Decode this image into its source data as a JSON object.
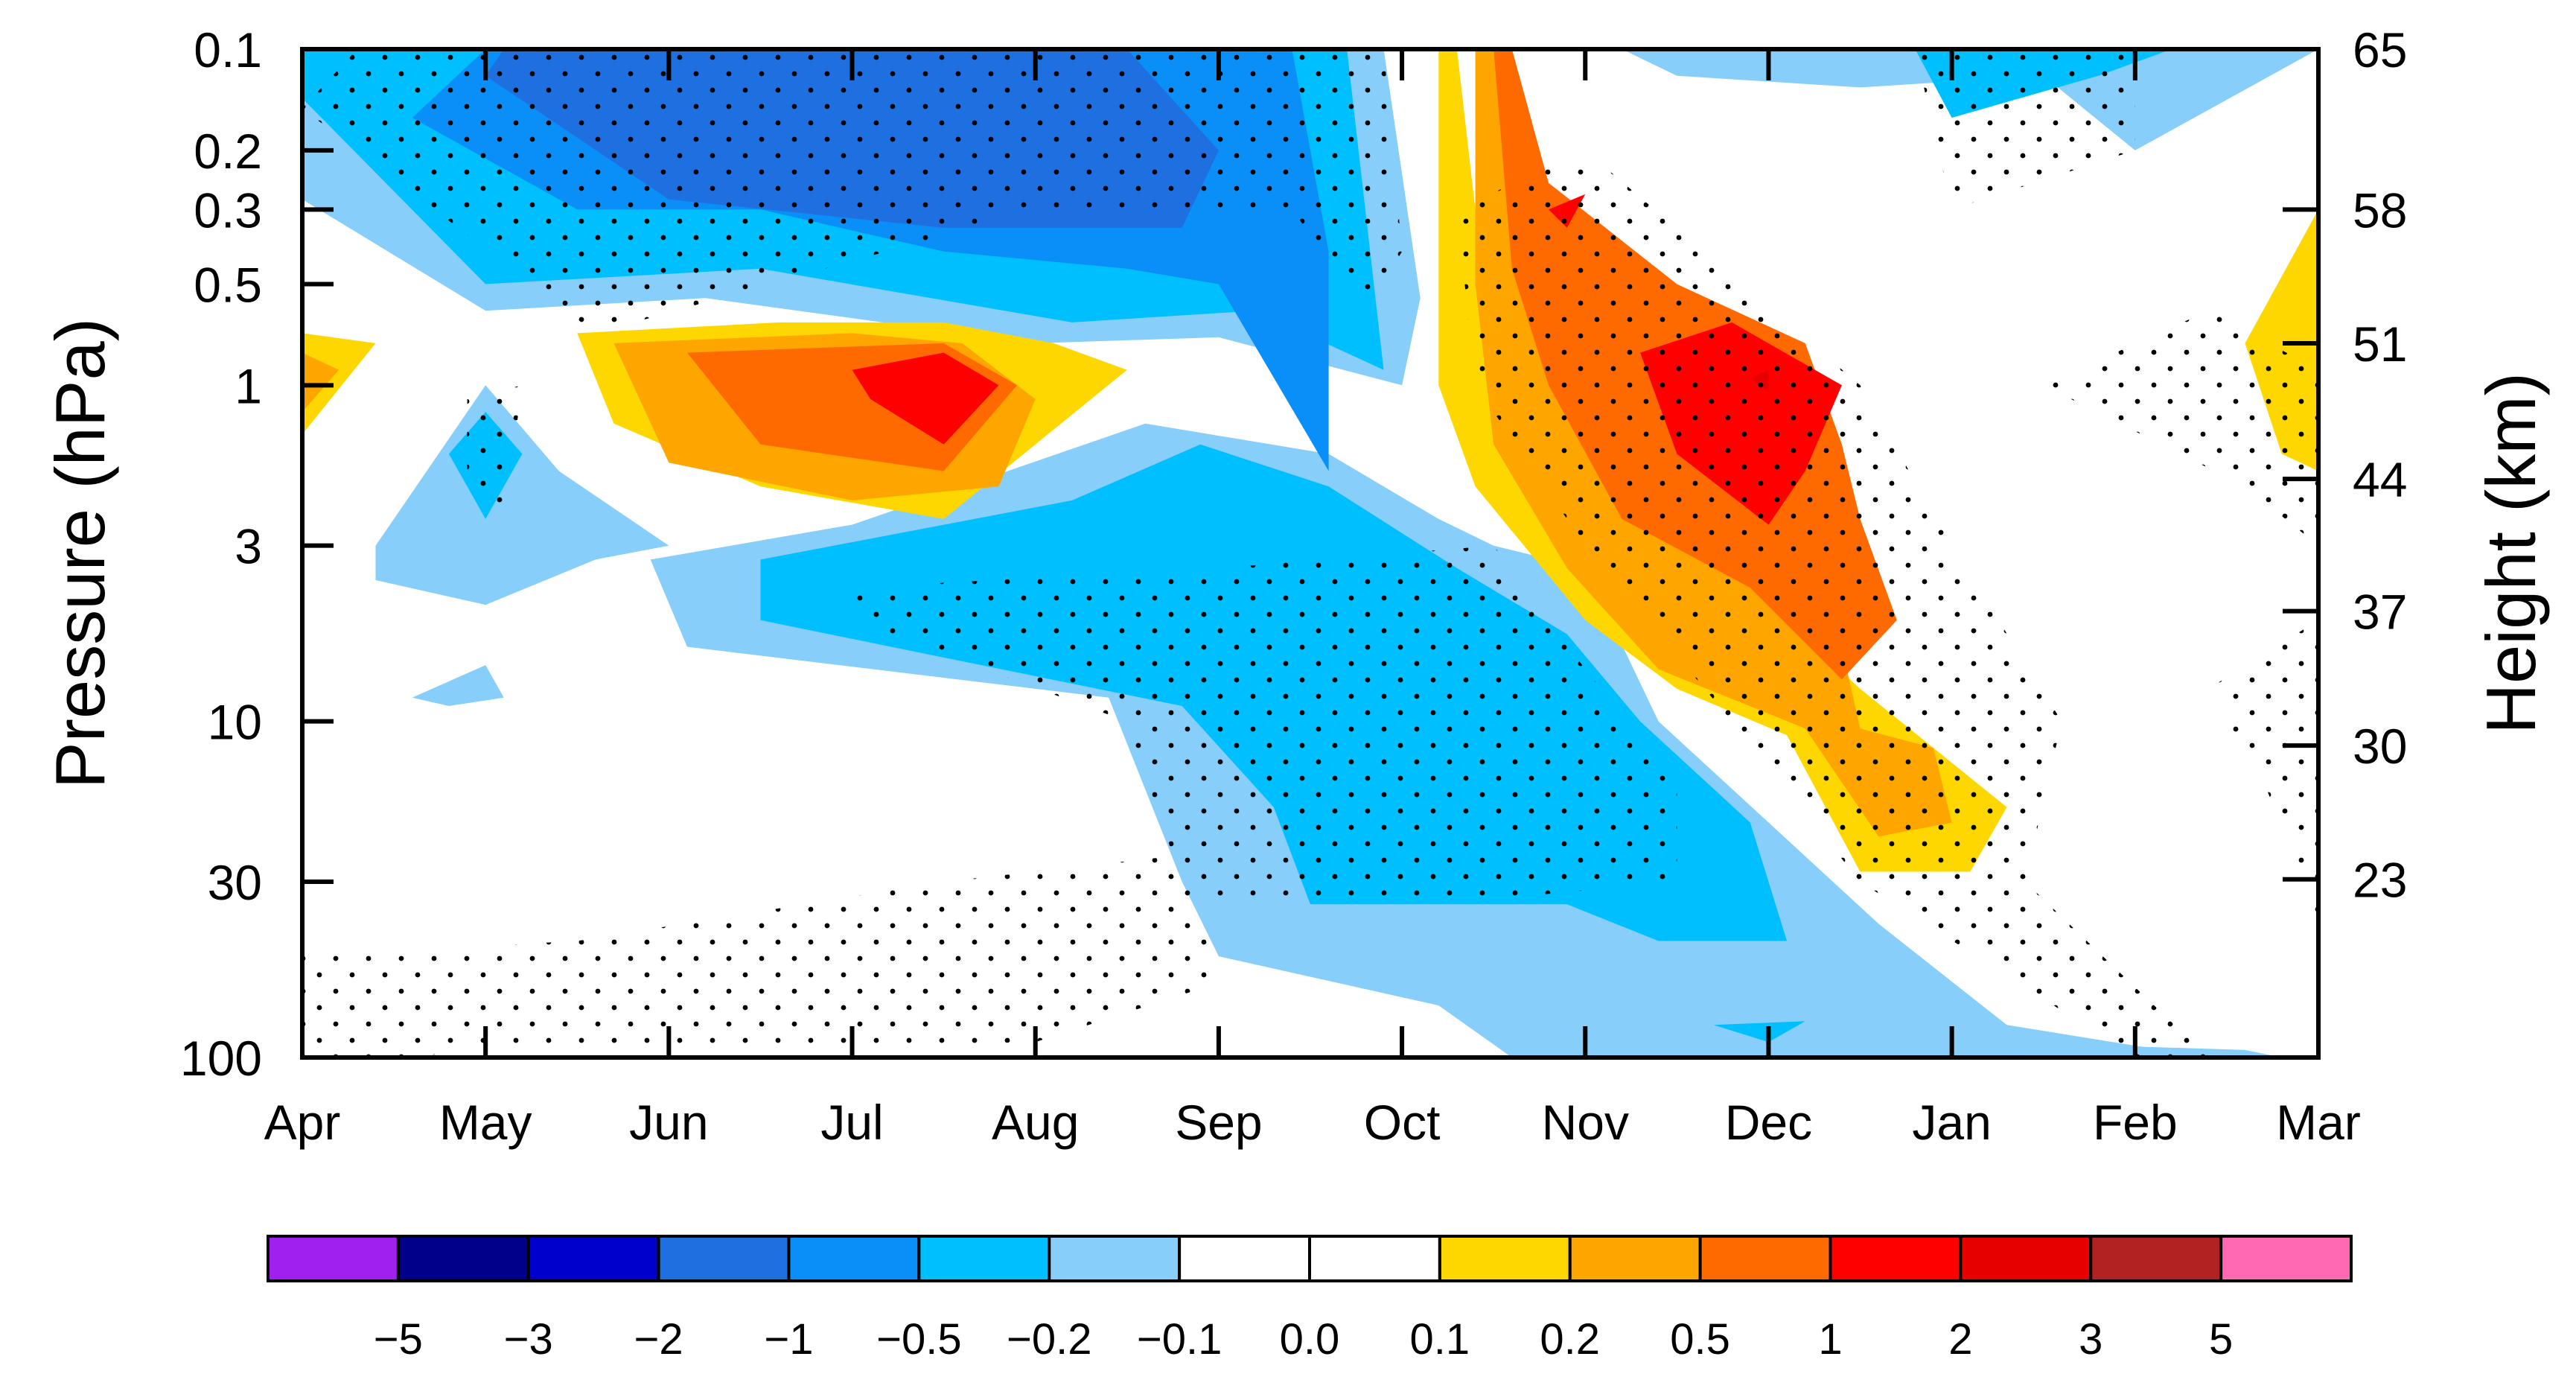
{
  "chart_data": {
    "type": "heatmap",
    "subtype": "filled-contour",
    "title": "",
    "xlabel": "",
    "ylabel": "Pressure (hPa)",
    "ylabel_right": "Height (km)",
    "x_ticks": [
      "Apr",
      "May",
      "Jun",
      "Jul",
      "Aug",
      "Sep",
      "Oct",
      "Nov",
      "Dec",
      "Jan",
      "Feb",
      "Mar"
    ],
    "x_range": [
      0,
      11
    ],
    "y_scale": "log",
    "y_range_hpa": [
      0.1,
      100
    ],
    "y_ticks_hpa": [
      {
        "value": 0.1,
        "label": "0.1"
      },
      {
        "value": 0.2,
        "label": "0.2"
      },
      {
        "value": 0.3,
        "label": "0.3"
      },
      {
        "value": 0.5,
        "label": "0.5"
      },
      {
        "value": 1,
        "label": "1"
      },
      {
        "value": 3,
        "label": "3"
      },
      {
        "value": 10,
        "label": "10"
      },
      {
        "value": 30,
        "label": "30"
      },
      {
        "value": 100,
        "label": "100"
      }
    ],
    "right_ticks": [
      {
        "pressure": 0.1,
        "label": "65"
      },
      {
        "pressure": 0.3,
        "label": "58"
      },
      {
        "pressure": 0.75,
        "label": "51"
      },
      {
        "pressure": 1.9,
        "label": "44"
      },
      {
        "pressure": 4.7,
        "label": "37"
      },
      {
        "pressure": 11.8,
        "label": "30"
      },
      {
        "pressure": 29.5,
        "label": "23"
      }
    ],
    "colorbar": {
      "colors": [
        "#a020f0",
        "#00008b",
        "#0000cd",
        "#1e6fe0",
        "#0a8ff8",
        "#00bfff",
        "#87cefa",
        "#ffffff",
        "#ffffff",
        "#ffd700",
        "#ffa500",
        "#ff6a00",
        "#ff0000",
        "#e60000",
        "#b22222",
        "#ff69b4"
      ],
      "labels": [
        "−5",
        "−3",
        "−2",
        "−1",
        "−0.5",
        "−0.2",
        "−0.1",
        "0.0",
        "0.1",
        "0.2",
        "0.5",
        "1",
        "2",
        "3",
        "5"
      ]
    },
    "regions": [
      {
        "level": -0.1,
        "points": [
          [
            0,
            0.28
          ],
          [
            1.0,
            0.6
          ],
          [
            2.2,
            0.55
          ],
          [
            4.0,
            0.75
          ],
          [
            5.0,
            0.72
          ],
          [
            6.0,
            1.0
          ],
          [
            6.1,
            0.55
          ],
          [
            5.9,
            0.1
          ],
          [
            0,
            0.1
          ]
        ]
      },
      {
        "level": -0.1,
        "points": [
          [
            0.4,
            3.0
          ],
          [
            1.0,
            1.0
          ],
          [
            1.4,
            1.8
          ],
          [
            2.0,
            3.0
          ],
          [
            1.6,
            3.3
          ],
          [
            1.0,
            4.5
          ],
          [
            0.4,
            3.8
          ]
        ]
      },
      {
        "level": -0.1,
        "points": [
          [
            1.9,
            3.3
          ],
          [
            3.0,
            2.6
          ],
          [
            4.6,
            1.3
          ],
          [
            5.6,
            1.6
          ],
          [
            6.2,
            2.5
          ],
          [
            6.5,
            3.0
          ],
          [
            7.0,
            3.5
          ],
          [
            7.4,
            10.0
          ],
          [
            8.0,
            20.0
          ],
          [
            8.6,
            40.0
          ],
          [
            9.3,
            80.0
          ],
          [
            10.4,
            100.0
          ],
          [
            6.6,
            100.0
          ],
          [
            6.2,
            70.0
          ],
          [
            5.0,
            50.0
          ],
          [
            4.8,
            30.0
          ],
          [
            4.4,
            8.5
          ],
          [
            2.1,
            6.0
          ]
        ]
      },
      {
        "level": -0.1,
        "points": [
          [
            0.6,
            8.5
          ],
          [
            1.0,
            6.8
          ],
          [
            1.1,
            8.5
          ],
          [
            0.8,
            9.0
          ]
        ]
      },
      {
        "level": -0.1,
        "points": [
          [
            7.2,
            0.1
          ],
          [
            7.5,
            0.12
          ],
          [
            8.5,
            0.13
          ],
          [
            9.5,
            0.12
          ],
          [
            10.0,
            0.2
          ],
          [
            11.0,
            0.1
          ]
        ]
      },
      {
        "level": -0.1,
        "points": [
          [
            9.2,
            100.0
          ],
          [
            9.8,
            92.0
          ],
          [
            10.6,
            95.0
          ],
          [
            10.8,
            100.0
          ]
        ]
      },
      {
        "level": -0.2,
        "points": [
          [
            0,
            0.14
          ],
          [
            1.0,
            0.5
          ],
          [
            2.5,
            0.45
          ],
          [
            4.2,
            0.65
          ],
          [
            5.2,
            0.6
          ],
          [
            5.9,
            0.9
          ],
          [
            5.7,
            0.1
          ],
          [
            0,
            0.1
          ]
        ]
      },
      {
        "level": -0.2,
        "points": [
          [
            1.0,
            1.2
          ],
          [
            1.2,
            1.6
          ],
          [
            1.0,
            2.5
          ],
          [
            0.8,
            1.6
          ]
        ]
      },
      {
        "level": -0.2,
        "points": [
          [
            2.5,
            3.3
          ],
          [
            4.2,
            2.2
          ],
          [
            4.9,
            1.5
          ],
          [
            5.6,
            2.0
          ],
          [
            6.3,
            3.5
          ],
          [
            6.9,
            5.5
          ],
          [
            7.3,
            10.0
          ],
          [
            7.9,
            20.0
          ],
          [
            8.1,
            45.0
          ],
          [
            7.4,
            45.0
          ],
          [
            6.9,
            35.0
          ],
          [
            5.5,
            35.0
          ],
          [
            5.3,
            18.0
          ],
          [
            4.8,
            9.0
          ],
          [
            2.5,
            5.0
          ]
        ]
      },
      {
        "level": -0.2,
        "points": [
          [
            8.8,
            0.1
          ],
          [
            9.0,
            0.16
          ],
          [
            9.8,
            0.12
          ],
          [
            10.2,
            0.1
          ]
        ]
      },
      {
        "level": -0.2,
        "points": [
          [
            7.7,
            80.0
          ],
          [
            8.2,
            78.0
          ],
          [
            8.0,
            90.0
          ]
        ]
      },
      {
        "level": -0.5,
        "points": [
          [
            0.6,
            0.16
          ],
          [
            1.5,
            0.3
          ],
          [
            2.5,
            0.3
          ],
          [
            3.5,
            0.4
          ],
          [
            4.5,
            0.45
          ],
          [
            5.0,
            0.5
          ],
          [
            5.6,
            1.8
          ],
          [
            5.6,
            0.4
          ],
          [
            5.4,
            0.1
          ],
          [
            1.0,
            0.1
          ]
        ]
      },
      {
        "level": -1,
        "points": [
          [
            1.0,
            0.12
          ],
          [
            2.0,
            0.28
          ],
          [
            3.5,
            0.34
          ],
          [
            4.8,
            0.34
          ],
          [
            5.0,
            0.2
          ],
          [
            4.5,
            0.1
          ],
          [
            1.1,
            0.1
          ]
        ]
      },
      {
        "level": 0.1,
        "points": [
          [
            6.3,
            0.1
          ],
          [
            6.4,
            0.3
          ],
          [
            6.6,
            0.8
          ],
          [
            7.2,
            2.0
          ],
          [
            8.0,
            4.5
          ],
          [
            8.5,
            8.0
          ],
          [
            8.9,
            12.0
          ],
          [
            9.3,
            18.0
          ],
          [
            9.1,
            28.0
          ],
          [
            8.5,
            28.0
          ],
          [
            8.1,
            11.0
          ],
          [
            7.5,
            8.0
          ],
          [
            7.0,
            5.0
          ],
          [
            6.4,
            2.0
          ],
          [
            6.2,
            1.0
          ],
          [
            6.2,
            0.1
          ]
        ]
      },
      {
        "level": 0.1,
        "points": [
          [
            1.5,
            0.7
          ],
          [
            2.6,
            0.65
          ],
          [
            3.5,
            0.65
          ],
          [
            4.1,
            0.75
          ],
          [
            4.5,
            0.9
          ],
          [
            3.5,
            2.5
          ],
          [
            2.5,
            2.0
          ],
          [
            1.7,
            1.3
          ]
        ]
      },
      {
        "level": 0.1,
        "points": [
          [
            0,
            0.7
          ],
          [
            0.4,
            0.75
          ],
          [
            0,
            1.4
          ]
        ]
      },
      {
        "level": 0.1,
        "points": [
          [
            10.6,
            0.75
          ],
          [
            11.0,
            0.3
          ],
          [
            11.0,
            1.8
          ],
          [
            10.8,
            1.6
          ]
        ]
      },
      {
        "level": 0.2,
        "points": [
          [
            6.5,
            0.1
          ],
          [
            6.6,
            0.3
          ],
          [
            6.7,
            0.65
          ],
          [
            7.2,
            1.5
          ],
          [
            7.8,
            3.5
          ],
          [
            8.4,
            6.0
          ],
          [
            8.5,
            10.5
          ],
          [
            8.9,
            12.0
          ],
          [
            9.0,
            20.0
          ],
          [
            8.6,
            22.0
          ],
          [
            8.2,
            10.5
          ],
          [
            7.4,
            7.0
          ],
          [
            6.9,
            3.5
          ],
          [
            6.5,
            1.5
          ],
          [
            6.4,
            0.5
          ],
          [
            6.4,
            0.1
          ]
        ]
      },
      {
        "level": 0.2,
        "points": [
          [
            1.7,
            0.75
          ],
          [
            3.0,
            0.7
          ],
          [
            3.6,
            0.75
          ],
          [
            4.0,
            1.1
          ],
          [
            3.8,
            2.0
          ],
          [
            3.0,
            2.2
          ],
          [
            2.0,
            1.7
          ]
        ]
      },
      {
        "level": 0.2,
        "points": [
          [
            0,
            0.8
          ],
          [
            0.2,
            0.9
          ],
          [
            0,
            1.2
          ]
        ]
      },
      {
        "level": 0.5,
        "points": [
          [
            6.6,
            0.1
          ],
          [
            6.8,
            0.25
          ],
          [
            7.5,
            0.5
          ],
          [
            8.2,
            0.75
          ],
          [
            8.4,
            1.5
          ],
          [
            8.5,
            2.5
          ],
          [
            8.7,
            5.0
          ],
          [
            8.4,
            7.5
          ],
          [
            7.9,
            4.0
          ],
          [
            7.2,
            2.5
          ],
          [
            6.8,
            1.0
          ],
          [
            6.6,
            0.45
          ],
          [
            6.5,
            0.1
          ]
        ]
      },
      {
        "level": 0.5,
        "points": [
          [
            2.1,
            0.8
          ],
          [
            3.5,
            0.75
          ],
          [
            3.9,
            1.0
          ],
          [
            3.5,
            1.8
          ],
          [
            2.5,
            1.5
          ]
        ]
      },
      {
        "level": 1,
        "points": [
          [
            6.8,
            0.3
          ],
          [
            7.0,
            0.27
          ],
          [
            6.9,
            0.34
          ]
        ]
      },
      {
        "level": 1,
        "points": [
          [
            3.0,
            0.9
          ],
          [
            3.5,
            0.8
          ],
          [
            3.8,
            1.0
          ],
          [
            3.5,
            1.5
          ],
          [
            3.1,
            1.1
          ]
        ]
      },
      {
        "level": 1,
        "points": [
          [
            7.3,
            0.8
          ],
          [
            7.8,
            0.65
          ],
          [
            8.4,
            1.0
          ],
          [
            8.2,
            1.8
          ],
          [
            8.0,
            2.6
          ],
          [
            7.5,
            1.6
          ]
        ]
      },
      {
        "level": 2,
        "points": [
          [
            7.9,
            0.95
          ],
          [
            8.0,
            0.9
          ],
          [
            8.0,
            1.05
          ]
        ]
      }
    ],
    "stipple_regions": [
      [
        [
          0,
          0.15
        ],
        [
          1.6,
          0.7
        ],
        [
          4.0,
          0.3
        ],
        [
          5.4,
          0.3
        ],
        [
          5.8,
          0.6
        ],
        [
          6.0,
          0.4
        ],
        [
          5.9,
          0.1
        ],
        [
          0.3,
          0.1
        ]
      ],
      [
        [
          0.9,
          1.1
        ],
        [
          1.2,
          1.0
        ],
        [
          1.1,
          2.5
        ],
        [
          0.9,
          2.0
        ]
      ],
      [
        [
          3.0,
          4.0
        ],
        [
          5.0,
          3.5
        ],
        [
          6.5,
          3.0
        ],
        [
          7.0,
          7.0
        ],
        [
          7.5,
          15.0
        ],
        [
          7.5,
          30.0
        ],
        [
          6.2,
          35.0
        ],
        [
          5.0,
          35.0
        ],
        [
          4.8,
          30.0
        ],
        [
          4.5,
          10.0
        ],
        [
          3.0,
          5.0
        ]
      ],
      [
        [
          0,
          50.0
        ],
        [
          1.5,
          45.0
        ],
        [
          3.5,
          30.0
        ],
        [
          4.8,
          25.0
        ],
        [
          5.0,
          60.0
        ],
        [
          4.0,
          90.0
        ],
        [
          0,
          100.0
        ]
      ],
      [
        [
          6.3,
          0.3
        ],
        [
          7.0,
          0.2
        ],
        [
          8.5,
          1.0
        ],
        [
          9.0,
          3.0
        ],
        [
          9.6,
          10.0
        ],
        [
          9.4,
          30.0
        ],
        [
          10.4,
          100.0
        ],
        [
          10.0,
          100.0
        ],
        [
          8.5,
          30.0
        ],
        [
          7.8,
          10.0
        ],
        [
          7.0,
          3.0
        ],
        [
          6.4,
          1.0
        ]
      ],
      [
        [
          9.5,
          1.0
        ],
        [
          10.4,
          0.6
        ],
        [
          11.0,
          0.9
        ],
        [
          11.0,
          3.0
        ],
        [
          10.6,
          2.0
        ]
      ],
      [
        [
          8.8,
          0.1
        ],
        [
          10.0,
          0.1
        ],
        [
          10.0,
          0.2
        ],
        [
          9.0,
          0.3
        ]
      ],
      [
        [
          10.4,
          8.0
        ],
        [
          11.0,
          5.0
        ],
        [
          11.0,
          40.0
        ],
        [
          10.7,
          15.0
        ]
      ]
    ]
  }
}
